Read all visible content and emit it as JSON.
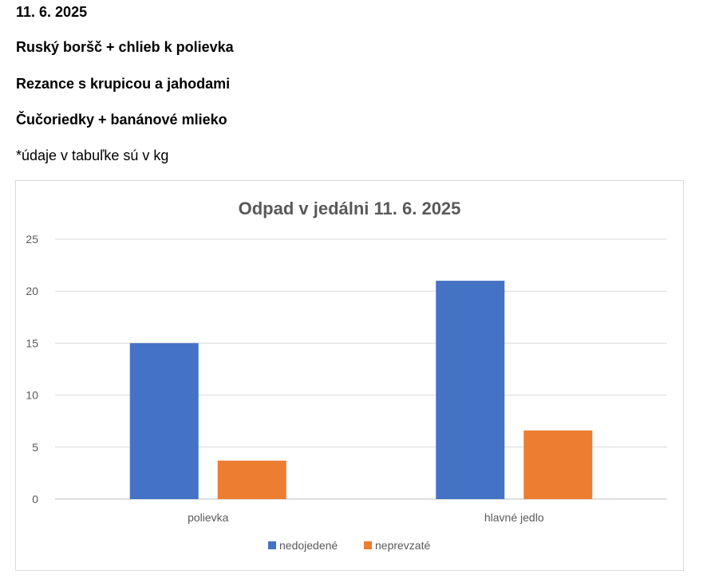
{
  "header": {
    "date": "11. 6. 2025",
    "soup": "Ruský boršč + chlieb k polievka",
    "main_dish": "Rezance s krupicou a jahodami",
    "dessert": "Čučoriedky + banánové mlieko",
    "note": "*údaje v tabuľke sú v kg"
  },
  "chart_data": {
    "type": "bar",
    "title": "Odpad v jedálni 11. 6. 2025",
    "xlabel": "",
    "ylabel": "",
    "categories": [
      "polievka",
      "hlavné jedlo"
    ],
    "series": [
      {
        "name": "nedojedené",
        "values": [
          15,
          21
        ],
        "color": "#4472c4"
      },
      {
        "name": "neprevzaté",
        "values": [
          3.7,
          6.6
        ],
        "color": "#ed7d31"
      }
    ],
    "ylim": [
      0,
      25
    ],
    "yticks": [
      "0",
      "5",
      "10",
      "15",
      "20",
      "25"
    ],
    "grid": true,
    "legend": "bottom"
  }
}
